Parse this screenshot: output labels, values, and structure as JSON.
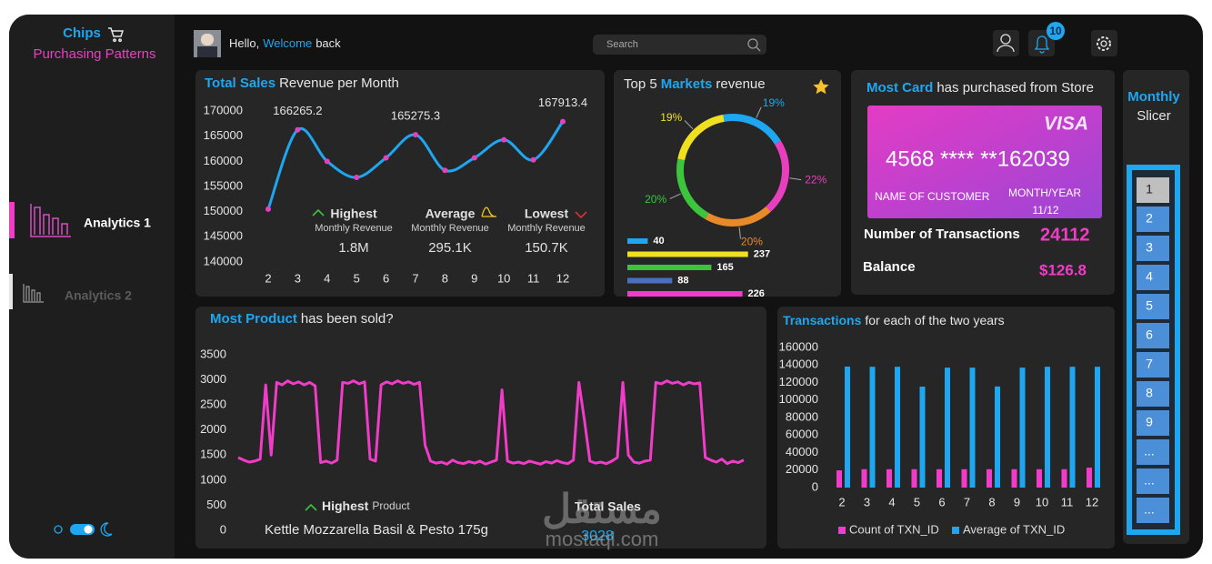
{
  "sidebar": {
    "brand": "Chips",
    "subtitle": "Purchasing Patterns",
    "nav": [
      "Analytics 1",
      "Analytics 2"
    ]
  },
  "header": {
    "greeting": "Hello,",
    "highlight": "Welcome",
    "rest": "back",
    "search_placeholder": "Search",
    "notifications": 10
  },
  "chart_data": [
    {
      "type": "line",
      "title_highlight": "Total Sales",
      "title": "Revenue per Month",
      "categories": [
        "2",
        "3",
        "4",
        "5",
        "6",
        "7",
        "8",
        "9",
        "10",
        "11",
        "12"
      ],
      "values": [
        150500,
        166265.2,
        160000,
        156800,
        160700,
        165275.3,
        158200,
        160700,
        164300,
        160300,
        167913.4
      ],
      "value_labels": [
        null,
        "166265.2",
        null,
        null,
        null,
        "165275.3",
        null,
        null,
        null,
        null,
        "167913.4"
      ],
      "color": "#1ea7f0",
      "marker_color": "#e83fbf",
      "ylim": [
        138000,
        172000
      ],
      "yticks": [
        140000,
        145000,
        150000,
        155000,
        160000,
        165000,
        170000
      ]
    },
    {
      "type": "donut",
      "title_start": "Top 5",
      "title_highlight": "Markets",
      "title_end": "revenue",
      "values": [
        19,
        22,
        20,
        20,
        19
      ],
      "value_labels": [
        "19%",
        "22%",
        "20%",
        "20%",
        "19%"
      ],
      "colors": [
        "#1ea7f0",
        "#e83fbf",
        "#e8892a",
        "#3cc43c",
        "#f0e020"
      ]
    },
    {
      "type": "hbar",
      "values": [
        40,
        237,
        165,
        88,
        226
      ],
      "colors": [
        "#1ea7f0",
        "#f0e020",
        "#3cc43c",
        "#4a6fc0",
        "#f03cc8"
      ],
      "xlim": [
        0,
        250
      ]
    },
    {
      "type": "line",
      "title_highlight": "Most Product",
      "title": "has been sold?",
      "values": [
        1450,
        1400,
        1360,
        1380,
        1420,
        2900,
        1500,
        2950,
        2900,
        2980,
        2920,
        2960,
        2900,
        2950,
        2880,
        1350,
        1380,
        1340,
        1400,
        2950,
        2930,
        2980,
        2920,
        2960,
        1420,
        1380,
        2900,
        2960,
        2920,
        2980,
        2930,
        2960,
        2910,
        2950,
        1700,
        1380,
        1340,
        1360,
        1320,
        1400,
        1350,
        1330,
        1370,
        1340,
        1380,
        1320,
        1360,
        1400,
        2800,
        1380,
        1340,
        1360,
        1330,
        1380,
        1350,
        1320,
        1370,
        1340,
        1390,
        1350,
        1330,
        1400,
        2950,
        2200,
        1380,
        1340,
        1360,
        1330,
        1380,
        1450,
        2950,
        1500,
        1360,
        1340,
        1380,
        1400,
        2950,
        2920,
        2980,
        2930,
        2960,
        2900,
        2950,
        2920,
        2940,
        1450,
        1400,
        1360,
        1420,
        1330,
        1380,
        1350,
        1400
      ],
      "color": "#f03cc8",
      "ylim": [
        0,
        3500
      ],
      "yticks": [
        0,
        500,
        1000,
        1500,
        2000,
        2500,
        3000,
        3500
      ]
    },
    {
      "type": "bar",
      "title_highlight": "Transactions",
      "title": "for each of the two years",
      "categories": [
        "2",
        "3",
        "4",
        "5",
        "6",
        "7",
        "8",
        "9",
        "10",
        "11",
        "12"
      ],
      "series": [
        {
          "name": "Count of TXN_ID",
          "color": "#f03cc8",
          "values": [
            19700,
            21000,
            21000,
            21000,
            21000,
            21000,
            21000,
            21000,
            21000,
            21000,
            22800
          ]
        },
        {
          "name": "Average of TXN_ID",
          "color": "#1ea7f0",
          "values": [
            138200,
            138000,
            138000,
            115300,
            137000,
            137000,
            115500,
            137000,
            138000,
            138000,
            138000
          ]
        }
      ],
      "ylim": [
        0,
        160000
      ],
      "yticks": [
        0,
        20000,
        40000,
        60000,
        80000,
        100000,
        120000,
        140000,
        160000
      ],
      "legend": "bottom"
    }
  ],
  "kpis": [
    {
      "label": "Highest",
      "sublabel": "Monthly Revenue",
      "value": "1.8M"
    },
    {
      "label": "Average",
      "sublabel": "Monthly Revenue",
      "value": "295.1K"
    },
    {
      "label": "Lowest",
      "sublabel": "Monthly Revenue",
      "value": "150.7K"
    }
  ],
  "card": {
    "title_highlight": "Most Card",
    "title": "has purchased from Store",
    "brand": "VISA",
    "number": "4568 **** **162039",
    "holder": "NAME OF CUSTOMER",
    "expiry_label": "MONTH/YEAR",
    "expiry": "11/12",
    "transactions_label": "Number of Transactions",
    "transactions": 24112,
    "balance_label": "Balance",
    "balance": "$126.8"
  },
  "product": {
    "label": "Highest",
    "sublabel": "Product",
    "name": "Kettle Mozzarella Basil & Pesto 175g",
    "total_label": "Total Sales",
    "total": 3028
  },
  "slicer": {
    "title": "Monthly",
    "subtitle": "Slicer",
    "items": [
      "1",
      "2",
      "3",
      "4",
      "5",
      "6",
      "7",
      "8",
      "9",
      "...",
      "...",
      "..."
    ]
  },
  "watermark": {
    "arabic": "مستقل",
    "latin": "mostaql.com"
  }
}
